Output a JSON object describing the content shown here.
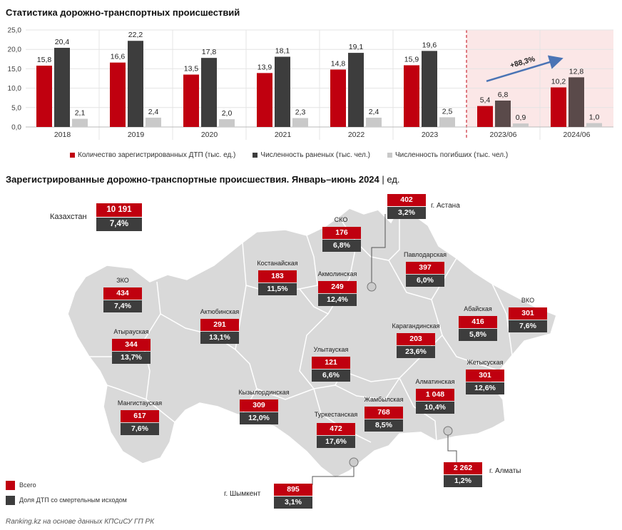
{
  "chart_title": "Статистика дорожно-транспортных происшествий",
  "chart_data": {
    "type": "bar",
    "categories": [
      "2018",
      "2019",
      "2020",
      "2021",
      "2022",
      "2023",
      "2023/06",
      "2024/06"
    ],
    "series": [
      {
        "name": "Количество зарегистрированных ДТП (тыс. ед.)",
        "values": [
          15.8,
          16.6,
          13.5,
          13.9,
          14.8,
          15.9,
          5.4,
          10.2
        ],
        "labels": [
          "15,8",
          "16,6",
          "13,5",
          "13,9",
          "14,8",
          "15,9",
          "5,4",
          "10,2"
        ]
      },
      {
        "name": "Численность раненых (тыс. чел.)",
        "values": [
          20.4,
          22.2,
          17.8,
          18.1,
          19.1,
          19.6,
          6.8,
          12.8
        ],
        "labels": [
          "20,4",
          "22,2",
          "17,8",
          "18,1",
          "19,1",
          "19,6",
          "6,8",
          "12,8"
        ]
      },
      {
        "name": "Численность погибших (тыс. чел.)",
        "values": [
          2.1,
          2.4,
          2.0,
          2.3,
          2.4,
          2.5,
          0.9,
          1.0
        ],
        "labels": [
          "2,1",
          "2,4",
          "2,0",
          "2,3",
          "2,4",
          "2,5",
          "0,9",
          "1,0"
        ]
      }
    ],
    "yticks": [
      "0,0",
      "5,0",
      "10,0",
      "15,0",
      "20,0",
      "25,0"
    ],
    "ylim": [
      0,
      25
    ],
    "annotation": "+88,3%",
    "legend_position": "bottom",
    "colors": {
      "dtp": "#c0000f",
      "injured": "#3d3d3d",
      "injured_highlight": "#5a4a4a",
      "killed": "#c9c9c9",
      "highlight_bg": "#fbe7e7"
    }
  },
  "map": {
    "title": "Зарегистрированные дорожно-транспортные происшествия. Январь–июнь 2024",
    "title_unit": "ед.",
    "kazakhstan": {
      "name": "Казахстан",
      "total": "10 191",
      "share": "7,4%"
    },
    "regions": [
      {
        "name": "СКО",
        "total": "176",
        "share": "6,8%"
      },
      {
        "name": "г. Астана",
        "total": "402",
        "share": "3,2%"
      },
      {
        "name": "Павлодарская",
        "total": "397",
        "share": "6,0%"
      },
      {
        "name": "Костанайская",
        "total": "183",
        "share": "11,5%"
      },
      {
        "name": "Акмолинская",
        "total": "249",
        "share": "12,4%"
      },
      {
        "name": "ЗКО",
        "total": "434",
        "share": "7,4%"
      },
      {
        "name": "Абайская",
        "total": "416",
        "share": "5,8%"
      },
      {
        "name": "ВКО",
        "total": "301",
        "share": "7,6%"
      },
      {
        "name": "Актюбинская",
        "total": "291",
        "share": "13,1%"
      },
      {
        "name": "Карагандинская",
        "total": "203",
        "share": "23,6%"
      },
      {
        "name": "Атырауская",
        "total": "344",
        "share": "13,7%"
      },
      {
        "name": "Улытауская",
        "total": "121",
        "share": "6,6%"
      },
      {
        "name": "Жетысуская",
        "total": "301",
        "share": "12,6%"
      },
      {
        "name": "Алматинская",
        "total": "1 048",
        "share": "10,4%"
      },
      {
        "name": "Кызылординская",
        "total": "309",
        "share": "12,0%"
      },
      {
        "name": "Мангистауская",
        "total": "617",
        "share": "7,6%"
      },
      {
        "name": "Жамбылская",
        "total": "768",
        "share": "8,5%"
      },
      {
        "name": "Туркестанская",
        "total": "472",
        "share": "17,6%"
      },
      {
        "name": "г. Алматы",
        "total": "2 262",
        "share": "1,2%"
      },
      {
        "name": "г. Шымкент",
        "total": "895",
        "share": "3,1%"
      }
    ],
    "legend": {
      "total": "Всего",
      "share": "Доля ДТП со смертельным исходом"
    }
  },
  "source": "Ranking.kz на основе данных КПСиСУ ГП РК"
}
